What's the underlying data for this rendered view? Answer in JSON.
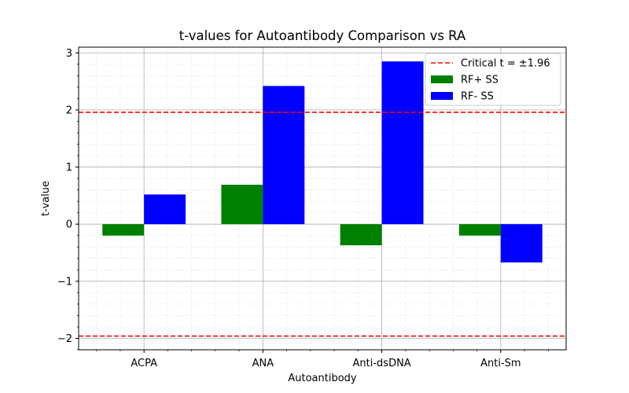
{
  "chart_data": {
    "type": "bar",
    "title": "t-values for Autoantibody Comparison vs RA",
    "xlabel": "Autoantibody",
    "ylabel": "t-value",
    "categories": [
      "ACPA",
      "ANA",
      "Anti-dsDNA",
      "Anti-Sm"
    ],
    "series": [
      {
        "name": "RF+ SS",
        "color": "#008000",
        "values": [
          -0.2,
          0.69,
          -0.37,
          -0.2
        ]
      },
      {
        "name": "RF- SS",
        "color": "#0000ff",
        "values": [
          0.52,
          2.42,
          2.85,
          -0.67
        ]
      }
    ],
    "reference_lines": [
      {
        "label": "Critical t = ±1.96",
        "values": [
          1.96,
          -1.96
        ],
        "color": "#ff0000",
        "style": "dashed"
      }
    ],
    "ylim": [
      -2.2,
      3.1
    ],
    "yticks": [
      -2,
      -1,
      0,
      1,
      2,
      3
    ],
    "ytick_labels": [
      "−2",
      "−1",
      "0",
      "1",
      "2",
      "3"
    ],
    "grid": true,
    "minor_grid": true,
    "legend_position": "top-right"
  }
}
